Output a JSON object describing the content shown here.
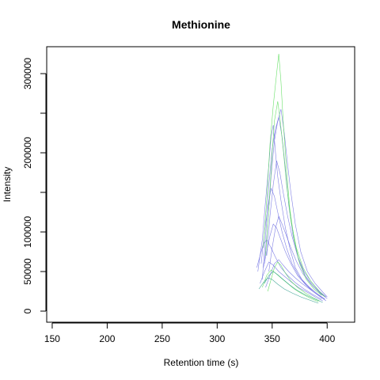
{
  "chart_data": {
    "type": "line",
    "title": "Methionine",
    "xlabel": "Retention time (s)",
    "ylabel": "Intensity",
    "xlim": [
      145,
      425
    ],
    "ylim": [
      -14000,
      334000
    ],
    "xticks": [
      150,
      200,
      250,
      300,
      350,
      400
    ],
    "yticks": [
      0,
      50000,
      100000,
      150000,
      200000,
      250000,
      300000
    ],
    "ytick_labels": [
      "0",
      "50000",
      "100000",
      "",
      "200000",
      "",
      "300000"
    ],
    "grid": false,
    "legend": "none",
    "series_colors": [
      "#6a6ae0",
      "#50dc50",
      "#2a9a8a"
    ],
    "series": [
      {
        "color": "#6a6ae0",
        "points": [
          [
            337,
            50000
          ],
          [
            341,
            90000
          ],
          [
            344,
            140000
          ],
          [
            347,
            185000
          ],
          [
            349,
            220000
          ],
          [
            351,
            235000
          ],
          [
            353,
            200000
          ],
          [
            355,
            170000
          ],
          [
            358,
            140000
          ],
          [
            362,
            105000
          ],
          [
            366,
            80000
          ],
          [
            371,
            55000
          ],
          [
            377,
            40000
          ],
          [
            384,
            30000
          ],
          [
            391,
            22000
          ],
          [
            398,
            15000
          ]
        ]
      },
      {
        "color": "#6a6ae0",
        "points": [
          [
            341,
            40000
          ],
          [
            344,
            95000
          ],
          [
            347,
            160000
          ],
          [
            350,
            205000
          ],
          [
            353,
            230000
          ],
          [
            356,
            245000
          ],
          [
            359,
            220000
          ],
          [
            362,
            180000
          ],
          [
            365,
            135000
          ],
          [
            369,
            95000
          ],
          [
            374,
            65000
          ],
          [
            380,
            45000
          ],
          [
            387,
            32000
          ],
          [
            394,
            22000
          ],
          [
            400,
            16000
          ]
        ]
      },
      {
        "color": "#6a6ae0",
        "points": [
          [
            343,
            60000
          ],
          [
            346,
            110000
          ],
          [
            349,
            170000
          ],
          [
            352,
            215000
          ],
          [
            355,
            240000
          ],
          [
            358,
            255000
          ],
          [
            361,
            225000
          ],
          [
            364,
            185000
          ],
          [
            367,
            150000
          ],
          [
            371,
            110000
          ],
          [
            376,
            75000
          ],
          [
            382,
            50000
          ],
          [
            389,
            35000
          ],
          [
            396,
            24000
          ],
          [
            400,
            18000
          ]
        ]
      },
      {
        "color": "#6a6ae0",
        "points": [
          [
            345,
            70000
          ],
          [
            348,
            120000
          ],
          [
            351,
            160000
          ],
          [
            354,
            190000
          ],
          [
            357,
            175000
          ],
          [
            360,
            150000
          ],
          [
            364,
            120000
          ],
          [
            368,
            95000
          ],
          [
            373,
            70000
          ],
          [
            379,
            50000
          ],
          [
            386,
            36000
          ],
          [
            393,
            25000
          ],
          [
            399,
            18000
          ]
        ]
      },
      {
        "color": "#6a6ae0",
        "points": [
          [
            340,
            60000
          ],
          [
            343,
            100000
          ],
          [
            346,
            130000
          ],
          [
            349,
            155000
          ],
          [
            352,
            145000
          ],
          [
            355,
            125000
          ],
          [
            359,
            100000
          ],
          [
            363,
            80000
          ],
          [
            368,
            60000
          ],
          [
            374,
            45000
          ],
          [
            381,
            33000
          ],
          [
            388,
            24000
          ],
          [
            395,
            17000
          ]
        ]
      },
      {
        "color": "#6a6ae0",
        "points": [
          [
            342,
            55000
          ],
          [
            345,
            75000
          ],
          [
            348,
            95000
          ],
          [
            351,
            110000
          ],
          [
            354,
            105000
          ],
          [
            358,
            90000
          ],
          [
            362,
            75000
          ],
          [
            367,
            60000
          ],
          [
            373,
            45000
          ],
          [
            380,
            34000
          ],
          [
            387,
            25000
          ],
          [
            394,
            18000
          ],
          [
            399,
            13000
          ]
        ]
      },
      {
        "color": "#6a6ae0",
        "points": [
          [
            347,
            50000
          ],
          [
            350,
            80000
          ],
          [
            353,
            105000
          ],
          [
            356,
            120000
          ],
          [
            359,
            110000
          ],
          [
            363,
            95000
          ],
          [
            367,
            80000
          ],
          [
            372,
            63000
          ],
          [
            378,
            47000
          ],
          [
            385,
            35000
          ],
          [
            392,
            25000
          ],
          [
            398,
            18000
          ]
        ]
      },
      {
        "color": "#6a6ae0",
        "points": [
          [
            336,
            55000
          ],
          [
            339,
            70000
          ],
          [
            342,
            85000
          ],
          [
            345,
            90000
          ],
          [
            349,
            80000
          ],
          [
            353,
            68000
          ],
          [
            358,
            55000
          ],
          [
            364,
            45000
          ],
          [
            371,
            36000
          ],
          [
            379,
            28000
          ],
          [
            387,
            21000
          ],
          [
            395,
            15000
          ]
        ]
      },
      {
        "color": "#6a6ae0",
        "points": [
          [
            344,
            30000
          ],
          [
            348,
            45000
          ],
          [
            352,
            60000
          ],
          [
            356,
            65000
          ],
          [
            360,
            58000
          ],
          [
            365,
            50000
          ],
          [
            371,
            42000
          ],
          [
            377,
            35000
          ],
          [
            384,
            28000
          ],
          [
            391,
            21000
          ],
          [
            398,
            15000
          ]
        ]
      },
      {
        "color": "#6a6ae0",
        "points": [
          [
            339,
            35000
          ],
          [
            343,
            50000
          ],
          [
            347,
            62000
          ],
          [
            351,
            58000
          ],
          [
            356,
            50000
          ],
          [
            362,
            43000
          ],
          [
            368,
            36000
          ],
          [
            375,
            29000
          ],
          [
            383,
            23000
          ],
          [
            390,
            17000
          ],
          [
            396,
            13000
          ]
        ]
      },
      {
        "color": "#50dc50",
        "points": [
          [
            342,
            80000
          ],
          [
            345,
            140000
          ],
          [
            348,
            210000
          ],
          [
            351,
            260000
          ],
          [
            354,
            300000
          ],
          [
            356,
            325000
          ],
          [
            358,
            290000
          ],
          [
            360,
            240000
          ],
          [
            363,
            180000
          ],
          [
            366,
            130000
          ],
          [
            370,
            90000
          ],
          [
            375,
            60000
          ],
          [
            381,
            40000
          ],
          [
            388,
            28000
          ],
          [
            395,
            20000
          ]
        ]
      },
      {
        "color": "#50dc50",
        "points": [
          [
            344,
            70000
          ],
          [
            347,
            130000
          ],
          [
            350,
            200000
          ],
          [
            352,
            240000
          ],
          [
            355,
            265000
          ],
          [
            357,
            245000
          ],
          [
            360,
            205000
          ],
          [
            363,
            160000
          ],
          [
            367,
            115000
          ],
          [
            372,
            80000
          ],
          [
            378,
            55000
          ],
          [
            385,
            38000
          ],
          [
            392,
            26000
          ],
          [
            398,
            18000
          ]
        ]
      },
      {
        "color": "#50dc50",
        "points": [
          [
            346,
            25000
          ],
          [
            349,
            40000
          ],
          [
            352,
            55000
          ],
          [
            355,
            62000
          ],
          [
            358,
            58000
          ],
          [
            362,
            48000
          ],
          [
            367,
            38000
          ],
          [
            373,
            30000
          ],
          [
            380,
            23000
          ],
          [
            387,
            17000
          ],
          [
            393,
            13000
          ]
        ]
      },
      {
        "color": "#50dc50",
        "points": [
          [
            341,
            30000
          ],
          [
            345,
            45000
          ],
          [
            349,
            52000
          ],
          [
            353,
            48000
          ],
          [
            358,
            42000
          ],
          [
            364,
            35000
          ],
          [
            370,
            28000
          ],
          [
            377,
            22000
          ],
          [
            385,
            16000
          ],
          [
            392,
            12000
          ]
        ]
      },
      {
        "color": "#2a9a8a",
        "points": [
          [
            343,
            35000
          ],
          [
            347,
            45000
          ],
          [
            351,
            50000
          ],
          [
            355,
            46000
          ],
          [
            360,
            40000
          ],
          [
            366,
            33000
          ],
          [
            373,
            26000
          ],
          [
            381,
            20000
          ],
          [
            389,
            15000
          ],
          [
            396,
            11000
          ]
        ]
      },
      {
        "color": "#2a9a8a",
        "points": [
          [
            338,
            28000
          ],
          [
            342,
            36000
          ],
          [
            346,
            42000
          ],
          [
            350,
            40000
          ],
          [
            355,
            34000
          ],
          [
            361,
            28000
          ],
          [
            368,
            23000
          ],
          [
            376,
            18000
          ],
          [
            384,
            14000
          ],
          [
            392,
            10000
          ]
        ]
      }
    ]
  }
}
